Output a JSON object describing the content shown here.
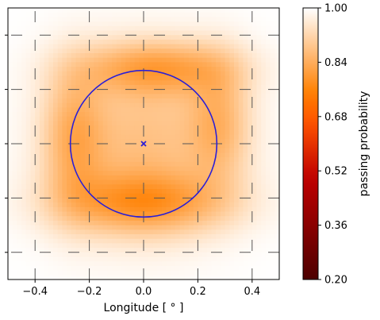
{
  "chart_data": {
    "type": "heatmap",
    "xlabel": "Longitude [$^\\circ$]",
    "xlabel_display": "Longitude [ ° ]",
    "x_ticks": [
      -0.4,
      -0.2,
      0.0,
      0.2,
      0.4
    ],
    "x_tick_labels": [
      "−0.4",
      "−0.2",
      "0.0",
      "0.2",
      "0.4"
    ],
    "xlim": [
      -0.5,
      0.5
    ],
    "ylim": [
      -0.5,
      0.5
    ],
    "y_ticks": [
      -0.4,
      -0.2,
      0.0,
      0.2,
      0.4
    ],
    "y_tick_labels_visible": false,
    "grid": "dashed",
    "colormap": "gist_heat",
    "colorbar": {
      "label": "passing probability",
      "min": 0.2,
      "max": 1.0,
      "ticks": [
        1.0,
        0.84,
        0.68,
        0.52,
        0.36,
        0.2
      ],
      "tick_labels": [
        "1.00",
        "0.84",
        "0.68",
        "0.52",
        "0.36",
        "0.20"
      ]
    },
    "overlays": {
      "circle": {
        "center": [
          0.0,
          0.0
        ],
        "radius": 0.27,
        "color": "#2b1fd6"
      },
      "marker": {
        "x": 0.0,
        "y": 0.0,
        "symbol": "x",
        "color": "#2b1fd6"
      }
    },
    "field": {
      "baseline": 1.0,
      "blobs": [
        {
          "x": 0.05,
          "y": 0.28,
          "sx": 0.2,
          "sy": 0.07,
          "depth": 0.15
        },
        {
          "x": 0.0,
          "y": -0.22,
          "sx": 0.22,
          "sy": 0.08,
          "depth": 0.16
        },
        {
          "x": -0.26,
          "y": 0.02,
          "sx": 0.08,
          "sy": 0.18,
          "depth": 0.12
        },
        {
          "x": 0.28,
          "y": 0.08,
          "sx": 0.08,
          "sy": 0.16,
          "depth": 0.11
        },
        {
          "x": 0.0,
          "y": 0.0,
          "sx": 0.22,
          "sy": 0.22,
          "depth": 0.12
        }
      ]
    }
  }
}
